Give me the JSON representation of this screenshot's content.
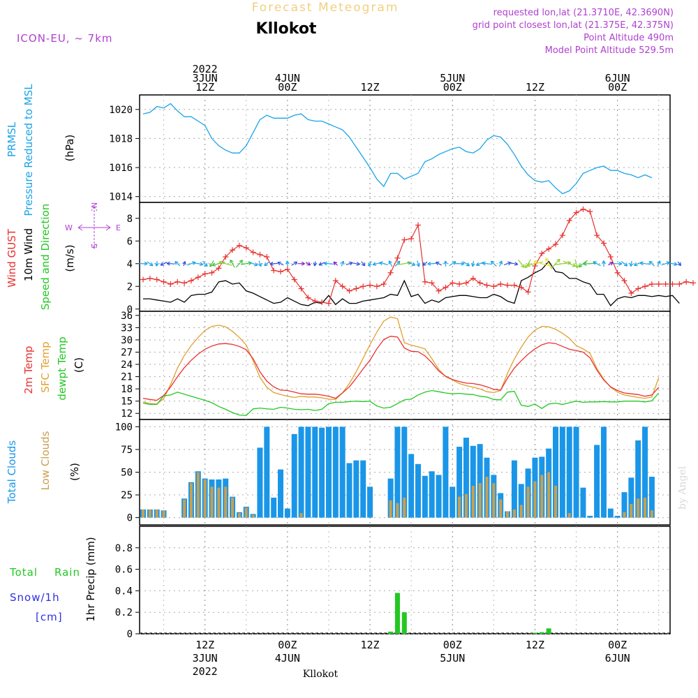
{
  "header": {
    "title": "Forecast Meteogram",
    "location": "Kllokot",
    "model": "ICON-EU, ~ 7km",
    "requested": "requested lon,lat (21.3710E, 42.3690N)",
    "gridpoint": "grid point closest lon,lat (21.375E, 42.375N)",
    "point_alt": "Point Altitude 490m",
    "model_alt": "Model Point Altitude 529.5m",
    "footer_location": "Kllokot",
    "watermark": "by Angel"
  },
  "colors": {
    "pressure": "#1aa3e8",
    "gust": "#e8312f",
    "wind": "#000000",
    "temp2m": "#e8312f",
    "sfc": "#e0a030",
    "dewpt": "#22c822",
    "total_clouds": "#1a96e8",
    "low_clouds": "#c8a050",
    "rain": "#22c822",
    "snow": "#3030e0",
    "purple": "#b040d0"
  },
  "time_axis": {
    "start_hour": 0,
    "end_hour": 63,
    "top_ticks": [
      {
        "hour": 9,
        "lines": [
          "2022",
          "3JUN",
          "12Z"
        ]
      },
      {
        "hour": 21,
        "lines": [
          "4JUN",
          "00Z"
        ]
      },
      {
        "hour": 33,
        "lines": [
          "12Z"
        ]
      },
      {
        "hour": 45,
        "lines": [
          "5JUN",
          "00Z"
        ]
      },
      {
        "hour": 57,
        "lines": [
          "12Z"
        ]
      },
      {
        "hour": 69,
        "lines": [
          "6JUN",
          "00Z"
        ]
      }
    ],
    "bottom_ticks": [
      {
        "hour": 9,
        "lines": [
          "12Z",
          "3JUN",
          "2022"
        ]
      },
      {
        "hour": 21,
        "lines": [
          "00Z",
          "4JUN"
        ]
      },
      {
        "hour": 33,
        "lines": [
          "12Z"
        ]
      },
      {
        "hour": 45,
        "lines": [
          "00Z",
          "5JUN"
        ]
      },
      {
        "hour": 57,
        "lines": [
          "12Z"
        ]
      },
      {
        "hour": 69,
        "lines": [
          "00Z",
          "6JUN"
        ]
      }
    ]
  },
  "panel_labels": {
    "pressure": [
      "PRMSL",
      "Pressure Reduced to MSL",
      "(hPa)"
    ],
    "wind": [
      "Wind GUST",
      "10m Wind",
      "Speed and Direction",
      "(m/s)"
    ],
    "compass": {
      "n": "N",
      "s": "S",
      "w": "W",
      "e": "E"
    },
    "temp": [
      "2m Temp",
      "SFC Temp",
      "dewpt Temp",
      "(C)"
    ],
    "clouds": [
      "Total Clouds",
      "Low Clouds",
      "(%)"
    ],
    "precip": [
      "Total",
      "Rain",
      "Snow/1h",
      "[cm]",
      "1hr Precip (mm)"
    ]
  },
  "chart_data": [
    {
      "type": "line",
      "panel": "pressure",
      "ylim": [
        1013.6,
        1021.0
      ],
      "yticks": [
        1014,
        1016,
        1018,
        1020
      ],
      "series": [
        {
          "values": [
            1019.7,
            1019.8,
            1020.2,
            1020.1,
            1020.4,
            1019.9,
            1019.5,
            1019.5,
            1019.2,
            1018.9,
            1018.0,
            1017.5,
            1017.2,
            1017.0,
            1017.0,
            1017.5,
            1018.4,
            1019.3,
            1019.6,
            1019.4,
            1019.4,
            1019.4,
            1019.6,
            1019.7,
            1019.3,
            1019.2,
            1019.2,
            1019.0,
            1018.8,
            1018.6,
            1018.1,
            1017.4,
            1016.7,
            1016.0,
            1015.2,
            1014.7,
            1015.6,
            1015.6,
            1015.2,
            1015.4,
            1015.6,
            1016.4,
            1016.6,
            1016.9,
            1017.1,
            1017.3,
            1017.4,
            1017.1,
            1017.0,
            1017.3,
            1017.9,
            1018.2,
            1018.1,
            1017.6,
            1016.9,
            1016.1,
            1015.5,
            1015.1,
            1015.0,
            1015.1,
            1014.6,
            1014.2,
            1014.4,
            1014.9,
            1015.6,
            1015.8,
            1016.0,
            1016.1,
            1015.8,
            1015.8,
            1015.6,
            1015.5,
            1015.3,
            1015.5,
            1015.3
          ]
        }
      ]
    },
    {
      "type": "line",
      "panel": "wind",
      "ylim": [
        -0.2,
        9.4
      ],
      "yticks": [
        0,
        2,
        4,
        6,
        8
      ],
      "series": [
        {
          "name": "Wind GUST",
          "values": [
            2.6,
            2.7,
            2.6,
            2.4,
            2.2,
            2.4,
            2.3,
            2.5,
            2.8,
            3.1,
            3.2,
            3.6,
            4.6,
            5.2,
            5.6,
            5.4,
            5.0,
            4.8,
            4.6,
            3.4,
            3.3,
            3.5,
            2.6,
            1.8,
            1.0,
            0.7,
            0.6,
            0.5,
            2.5,
            2.0,
            1.6,
            1.8,
            2.0,
            2.1,
            2.0,
            2.2,
            3.2,
            4.5,
            6.1,
            6.2,
            7.4,
            2.4,
            2.3,
            1.6,
            1.9,
            2.3,
            2.2,
            2.3,
            2.7,
            2.3,
            2.1,
            2.0,
            2.2,
            2.1,
            2.1,
            1.9,
            1.5,
            3.8,
            4.9,
            5.3,
            5.7,
            6.5,
            7.8,
            8.5,
            8.8,
            8.6,
            6.5,
            5.8,
            4.6,
            3.2,
            2.5,
            1.4,
            1.8,
            2.0,
            2.2,
            2.2,
            2.2,
            2.2,
            2.2,
            2.4,
            2.3
          ]
        },
        {
          "name": "10m Wind",
          "values": [
            0.9,
            0.9,
            0.8,
            0.7,
            0.6,
            0.9,
            0.6,
            1.2,
            1.3,
            1.3,
            1.5,
            2.4,
            2.5,
            2.2,
            2.3,
            1.6,
            1.4,
            1.1,
            0.8,
            0.5,
            0.6,
            1.0,
            0.7,
            0.4,
            0.3,
            0.6,
            0.5,
            1.2,
            0.4,
            0.9,
            0.5,
            0.5,
            0.7,
            0.8,
            0.9,
            1.0,
            1.3,
            1.2,
            2.5,
            1.1,
            1.3,
            0.5,
            0.8,
            0.6,
            1.0,
            1.1,
            1.2,
            1.2,
            1.1,
            1.0,
            1.0,
            1.3,
            1.1,
            0.7,
            0.5,
            2.5,
            2.8,
            3.2,
            3.5,
            4.2,
            3.3,
            3.2,
            2.7,
            2.7,
            2.4,
            2.2,
            1.3,
            1.3,
            0.3,
            0.9,
            1.1,
            1.0,
            1.2,
            1.2,
            1.1,
            1.2,
            1.1,
            1.2,
            0.5
          ]
        }
      ]
    },
    {
      "type": "line",
      "panel": "temp",
      "ylim": [
        10.5,
        37.0
      ],
      "yticks": [
        12,
        15,
        18,
        21,
        24,
        27,
        30,
        33,
        36
      ],
      "series": [
        {
          "name": "2m Temp",
          "values": [
            15.7,
            15.4,
            15.2,
            16.4,
            18.5,
            21.0,
            23.2,
            25.0,
            26.5,
            27.7,
            28.5,
            29.0,
            29.1,
            28.9,
            28.4,
            27.6,
            25.4,
            22.2,
            19.9,
            18.5,
            17.7,
            17.6,
            17.2,
            16.8,
            16.7,
            16.7,
            16.5,
            16.2,
            15.7,
            17.0,
            18.5,
            20.6,
            22.9,
            25.0,
            27.8,
            30.1,
            30.9,
            30.7,
            28.0,
            27.2,
            27.1,
            26.1,
            24.4,
            22.4,
            21.1,
            20.3,
            19.8,
            19.4,
            19.3,
            19.0,
            18.5,
            17.9,
            17.7,
            20.6,
            23.1,
            24.9,
            26.5,
            27.8,
            28.8,
            29.3,
            29.1,
            28.4,
            27.7,
            27.4,
            27.0,
            25.6,
            22.6,
            20.2,
            18.5,
            17.6,
            17.0,
            16.8,
            16.6,
            16.2,
            16.5,
            18.4
          ]
        },
        {
          "name": "SFC Temp",
          "values": [
            14.8,
            14.4,
            14.3,
            15.6,
            19.1,
            23.1,
            26.2,
            28.6,
            30.6,
            32.3,
            33.3,
            33.6,
            33.2,
            32.1,
            30.6,
            28.7,
            24.9,
            20.8,
            18.4,
            17.1,
            16.6,
            16.2,
            15.9,
            16.2,
            16.0,
            16.0,
            15.8,
            15.5,
            15.4,
            17.0,
            19.3,
            22.2,
            25.5,
            28.8,
            31.9,
            34.6,
            35.6,
            35.2,
            29.3,
            28.7,
            28.3,
            27.8,
            25.4,
            22.8,
            21.0,
            20.2,
            19.3,
            18.8,
            18.4,
            18.0,
            17.3,
            17.1,
            17.6,
            21.8,
            25.3,
            28.2,
            30.7,
            32.4,
            33.3,
            33.2,
            32.6,
            31.6,
            30.4,
            28.6,
            27.8,
            26.7,
            23.0,
            20.4,
            18.4,
            17.2,
            16.5,
            16.2,
            15.9,
            15.7,
            16.0,
            20.8
          ]
        },
        {
          "name": "dewpt Temp",
          "values": [
            14.5,
            14.2,
            14.2,
            16.3,
            16.5,
            17.2,
            16.7,
            16.2,
            15.7,
            15.2,
            14.6,
            13.7,
            13.0,
            12.2,
            11.6,
            11.5,
            13.1,
            13.3,
            13.1,
            13.0,
            13.5,
            13.3,
            13.0,
            12.9,
            13.0,
            12.7,
            13.0,
            14.4,
            14.7,
            14.7,
            14.9,
            15.0,
            14.9,
            15.0,
            13.8,
            13.3,
            13.5,
            14.4,
            15.3,
            15.5,
            16.5,
            17.2,
            17.6,
            17.3,
            17.0,
            16.8,
            16.9,
            16.7,
            16.6,
            16.2,
            16.0,
            15.4,
            15.3,
            17.2,
            17.4,
            14.0,
            13.7,
            14.3,
            13.2,
            14.3,
            14.5,
            14.2,
            14.6,
            15.0,
            14.7,
            14.8,
            14.8,
            14.9,
            14.8,
            14.8,
            15.0,
            15.0,
            15.0,
            14.8,
            15.1,
            17.0
          ]
        }
      ]
    },
    {
      "type": "bar",
      "panel": "clouds",
      "ylim": [
        -8,
        108
      ],
      "yticks": [
        0,
        25,
        50,
        75,
        100
      ],
      "series": [
        {
          "name": "Total Clouds",
          "values": [
            9,
            9,
            9,
            8,
            0,
            0,
            21,
            39,
            51,
            43,
            42,
            42,
            43,
            23,
            6,
            12,
            4,
            77,
            100,
            22,
            53,
            10,
            92,
            100,
            100,
            100,
            99,
            100,
            100,
            100,
            60,
            63,
            63,
            34,
            0,
            0,
            43,
            100,
            100,
            70,
            59,
            46,
            51,
            47,
            100,
            34,
            78,
            88,
            79,
            81,
            66,
            47,
            27,
            7,
            63,
            37,
            54,
            66,
            67,
            76,
            100,
            100,
            100,
            100,
            33,
            2,
            80,
            100,
            10,
            2,
            28,
            44,
            85,
            100,
            45
          ]
        },
        {
          "name": "Low Clouds",
          "values": [
            9,
            9,
            9,
            8,
            0,
            0,
            20,
            38,
            50,
            42,
            34,
            33,
            34,
            22,
            5,
            11,
            3,
            0,
            0,
            0,
            0,
            0,
            0,
            5,
            0,
            0,
            0,
            0,
            0,
            0,
            0,
            0,
            0,
            0,
            0,
            0,
            19,
            16,
            22,
            0,
            0,
            0,
            0,
            0,
            0,
            0,
            23,
            26,
            35,
            38,
            45,
            38,
            20,
            7,
            9,
            14,
            34,
            40,
            47,
            50,
            35,
            0,
            5,
            0,
            0,
            0,
            0,
            0,
            0,
            0,
            6,
            15,
            21,
            22,
            8
          ]
        }
      ]
    },
    {
      "type": "bar",
      "panel": "precip",
      "ylim": [
        0,
        1.0
      ],
      "yticks": [
        0,
        0.2,
        0.4,
        0.6,
        0.8
      ],
      "series": [
        {
          "name": "Total Rain",
          "values": [
            0,
            0,
            0,
            0,
            0,
            0,
            0,
            0,
            0,
            0,
            0,
            0,
            0,
            0,
            0,
            0,
            0,
            0,
            0,
            0,
            0,
            0,
            0,
            0,
            0,
            0,
            0,
            0,
            0,
            0,
            0,
            0,
            0,
            0,
            0,
            0,
            0.02,
            0.38,
            0.2,
            0,
            0,
            0,
            0,
            0,
            0,
            0,
            0,
            0,
            0,
            0,
            0,
            0,
            0,
            0,
            0,
            0,
            0,
            0.01,
            0.015,
            0.05,
            0,
            0,
            0,
            0,
            0,
            0,
            0,
            0,
            0,
            0,
            0,
            0,
            0,
            0,
            0
          ]
        }
      ]
    }
  ]
}
